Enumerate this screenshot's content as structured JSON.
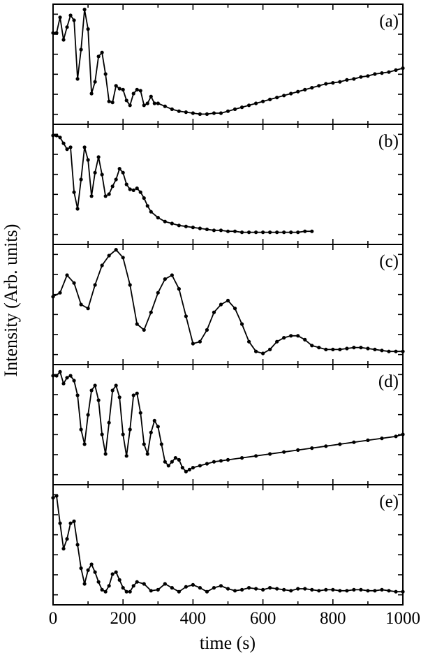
{
  "chart_data": {
    "type": "line",
    "ylabel": "Intensity (Arb. units)",
    "xlabel": "time (s)",
    "xlim": [
      0,
      1000
    ],
    "x_ticks": [
      "0",
      "200",
      "400",
      "600",
      "800",
      "1000"
    ],
    "ylim": [
      0,
      1
    ],
    "panels": [
      {
        "label": "(a)",
        "series": [
          {
            "x": [
              0,
              10,
              20,
              30,
              40,
              50,
              60,
              70,
              80,
              90,
              100,
              110,
              120,
              130,
              140,
              150,
              160,
              170,
              180,
              190,
              200,
              210,
              220,
              230,
              240,
              250,
              260,
              270,
              280,
              290,
              300,
              320,
              340,
              360,
              380,
              400,
              420,
              440,
              460,
              480,
              500,
              520,
              540,
              560,
              580,
              600,
              620,
              640,
              660,
              680,
              700,
              720,
              740,
              760,
              780,
              800,
              820,
              840,
              860,
              880,
              900,
              920,
              940,
              960,
              980,
              1000
            ],
            "y": [
              0.82,
              0.82,
              0.98,
              0.75,
              0.88,
              1.0,
              0.95,
              0.35,
              0.65,
              1.06,
              0.86,
              0.2,
              0.32,
              0.58,
              0.62,
              0.4,
              0.12,
              0.11,
              0.28,
              0.25,
              0.24,
              0.13,
              0.08,
              0.2,
              0.24,
              0.23,
              0.08,
              0.1,
              0.17,
              0.1,
              0.1,
              0.07,
              0.04,
              0.02,
              0.01,
              0.0,
              -0.01,
              -0.01,
              0.0,
              0.0,
              0.02,
              0.04,
              0.06,
              0.08,
              0.1,
              0.12,
              0.14,
              0.16,
              0.18,
              0.2,
              0.22,
              0.24,
              0.26,
              0.28,
              0.3,
              0.31,
              0.32,
              0.34,
              0.35,
              0.37,
              0.38,
              0.4,
              0.41,
              0.42,
              0.44,
              0.46
            ]
          }
        ]
      },
      {
        "label": "(b)",
        "series": [
          {
            "x": [
              0,
              10,
              20,
              30,
              40,
              50,
              60,
              70,
              80,
              90,
              100,
              110,
              120,
              130,
              140,
              150,
              160,
              170,
              180,
              190,
              200,
              210,
              220,
              230,
              240,
              250,
              260,
              270,
              280,
              300,
              320,
              340,
              360,
              380,
              400,
              420,
              440,
              460,
              480,
              500,
              520,
              540,
              560,
              580,
              600,
              620,
              640,
              660,
              680,
              700,
              720,
              740
            ],
            "y": [
              1.0,
              1.0,
              0.98,
              0.92,
              0.86,
              0.88,
              0.42,
              0.25,
              0.55,
              0.88,
              0.75,
              0.38,
              0.62,
              0.78,
              0.6,
              0.38,
              0.4,
              0.48,
              0.55,
              0.66,
              0.62,
              0.5,
              0.45,
              0.44,
              0.46,
              0.42,
              0.36,
              0.28,
              0.22,
              0.16,
              0.12,
              0.1,
              0.08,
              0.07,
              0.06,
              0.05,
              0.04,
              0.03,
              0.03,
              0.02,
              0.02,
              0.01,
              0.01,
              0.01,
              0.01,
              0.01,
              0.01,
              0.01,
              0.01,
              0.01,
              0.02,
              0.02
            ]
          }
        ]
      },
      {
        "label": "(c)",
        "series": [
          {
            "x": [
              0,
              20,
              40,
              60,
              80,
              100,
              120,
              140,
              160,
              180,
              200,
              220,
              240,
              260,
              280,
              300,
              320,
              340,
              360,
              380,
              400,
              420,
              440,
              460,
              480,
              500,
              520,
              540,
              560,
              580,
              600,
              620,
              640,
              660,
              680,
              700,
              720,
              740,
              760,
              780,
              800,
              820,
              840,
              860,
              880,
              900,
              920,
              940,
              960,
              980,
              1000
            ],
            "y": [
              0.58,
              0.62,
              0.8,
              0.72,
              0.5,
              0.46,
              0.7,
              0.9,
              1.0,
              1.06,
              0.98,
              0.7,
              0.3,
              0.24,
              0.42,
              0.62,
              0.76,
              0.8,
              0.66,
              0.38,
              0.1,
              0.12,
              0.24,
              0.42,
              0.5,
              0.54,
              0.46,
              0.3,
              0.12,
              0.02,
              0.0,
              0.04,
              0.12,
              0.16,
              0.18,
              0.18,
              0.14,
              0.08,
              0.06,
              0.04,
              0.04,
              0.04,
              0.05,
              0.06,
              0.06,
              0.05,
              0.04,
              0.03,
              0.02,
              0.02,
              0.02
            ]
          }
        ]
      },
      {
        "label": "(d)",
        "series": [
          {
            "x": [
              0,
              10,
              20,
              30,
              40,
              50,
              60,
              70,
              80,
              90,
              100,
              110,
              120,
              130,
              140,
              150,
              160,
              170,
              180,
              190,
              200,
              210,
              220,
              230,
              240,
              250,
              260,
              270,
              280,
              290,
              300,
              310,
              320,
              330,
              340,
              350,
              360,
              370,
              380,
              390,
              400,
              420,
              440,
              460,
              480,
              500,
              540,
              580,
              620,
              660,
              700,
              740,
              780,
              820,
              860,
              900,
              940,
              980,
              1000
            ],
            "y": [
              1.0,
              1.0,
              1.04,
              0.92,
              0.98,
              1.0,
              0.95,
              0.8,
              0.45,
              0.3,
              0.6,
              0.85,
              0.9,
              0.75,
              0.4,
              0.2,
              0.52,
              0.85,
              0.9,
              0.78,
              0.4,
              0.18,
              0.45,
              0.8,
              0.82,
              0.62,
              0.3,
              0.2,
              0.42,
              0.54,
              0.48,
              0.3,
              0.12,
              0.08,
              0.12,
              0.16,
              0.14,
              0.06,
              0.02,
              0.04,
              0.06,
              0.08,
              0.1,
              0.12,
              0.13,
              0.14,
              0.16,
              0.18,
              0.2,
              0.22,
              0.24,
              0.26,
              0.28,
              0.3,
              0.32,
              0.34,
              0.36,
              0.38,
              0.4
            ]
          }
        ]
      },
      {
        "label": "(e)",
        "series": [
          {
            "x": [
              0,
              10,
              20,
              30,
              40,
              50,
              60,
              70,
              80,
              90,
              100,
              110,
              120,
              130,
              140,
              150,
              160,
              170,
              180,
              190,
              200,
              210,
              220,
              230,
              240,
              260,
              280,
              300,
              320,
              340,
              360,
              380,
              400,
              420,
              440,
              460,
              480,
              500,
              520,
              540,
              560,
              580,
              600,
              620,
              640,
              660,
              680,
              700,
              720,
              740,
              760,
              780,
              800,
              820,
              840,
              860,
              880,
              900,
              920,
              940,
              960,
              980,
              1000
            ],
            "y": [
              0.98,
              1.0,
              0.72,
              0.46,
              0.56,
              0.72,
              0.74,
              0.5,
              0.26,
              0.1,
              0.24,
              0.3,
              0.22,
              0.12,
              0.04,
              0.02,
              0.08,
              0.2,
              0.22,
              0.14,
              0.06,
              0.02,
              0.02,
              0.08,
              0.12,
              0.1,
              0.03,
              0.04,
              0.1,
              0.06,
              0.02,
              0.07,
              0.09,
              0.06,
              0.02,
              0.06,
              0.08,
              0.05,
              0.03,
              0.04,
              0.06,
              0.05,
              0.04,
              0.06,
              0.05,
              0.04,
              0.03,
              0.05,
              0.05,
              0.04,
              0.03,
              0.04,
              0.04,
              0.03,
              0.03,
              0.04,
              0.04,
              0.03,
              0.03,
              0.04,
              0.03,
              0.02,
              0.02
            ]
          }
        ]
      }
    ]
  }
}
